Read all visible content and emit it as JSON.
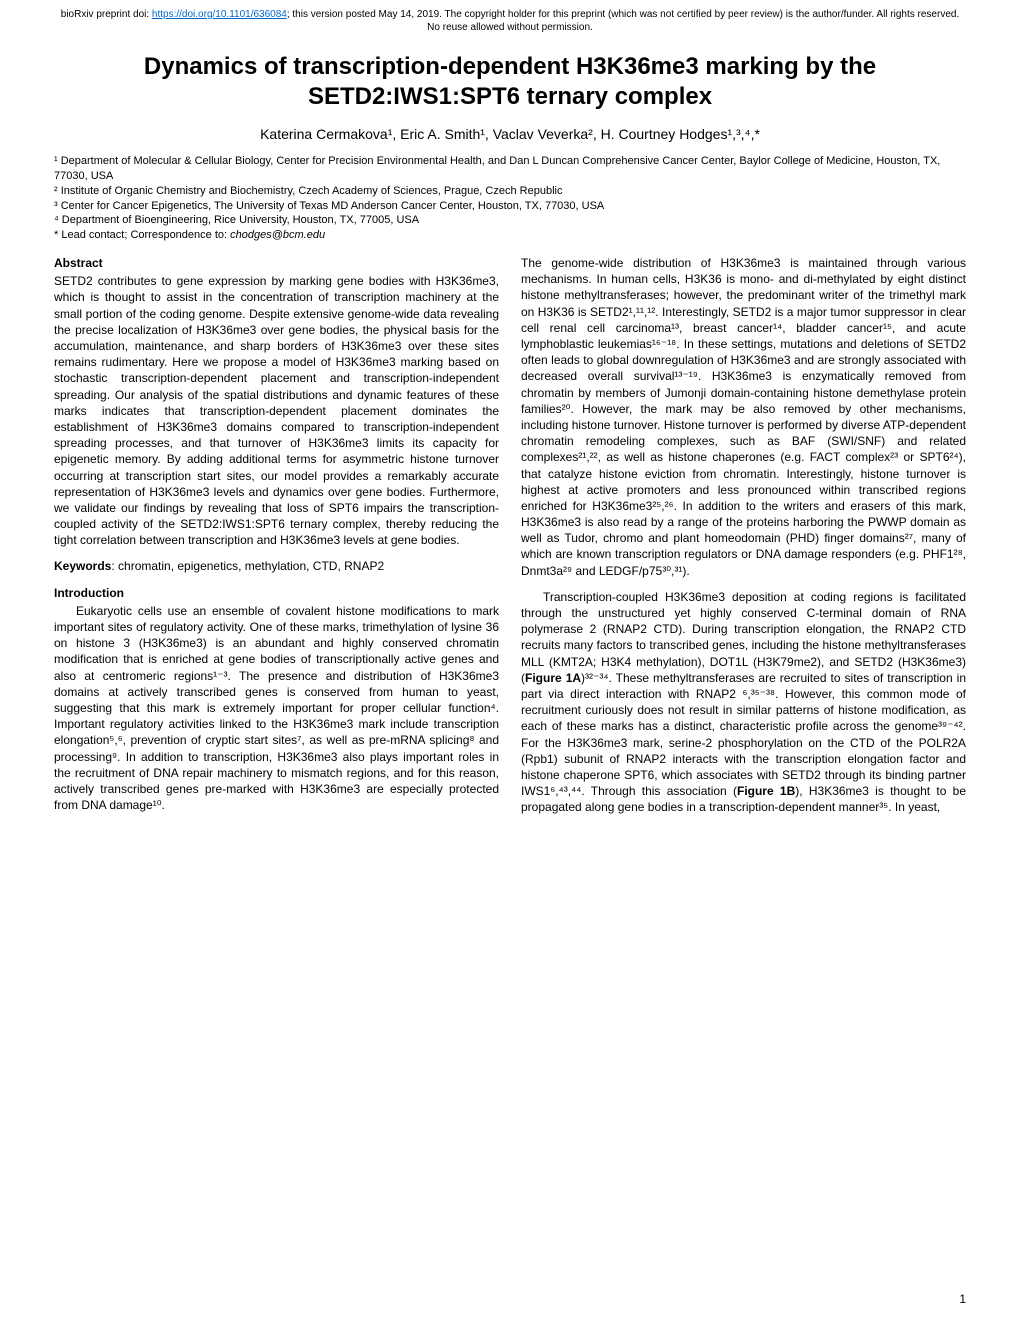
{
  "preprint": {
    "prefix": "bioRxiv preprint doi: ",
    "doi_url": "https://doi.org/10.1101/636084",
    "suffix": "; this version posted May 14, 2019. The copyright holder for this preprint (which was not certified by peer review) is the author/funder. All rights reserved. No reuse allowed without permission."
  },
  "title": "Dynamics of transcription-dependent H3K36me3 marking by the SETD2:IWS1:SPT6 ternary complex",
  "authors": "Katerina Cermakova¹, Eric A. Smith¹, Vaclav Veverka², H. Courtney Hodges¹,³,⁴,*",
  "affiliations": [
    "¹ Department of Molecular & Cellular Biology, Center for Precision Environmental Health, and Dan L Duncan Comprehensive Cancer Center, Baylor College of Medicine, Houston, TX, 77030, USA",
    "² Institute of Organic Chemistry and Biochemistry, Czech Academy of Sciences, Prague, Czech Republic",
    "³ Center for Cancer Epigenetics, The University of Texas MD Anderson Cancer Center, Houston, TX, 77030, USA",
    "⁴ Department of Bioengineering, Rice University, Houston, TX, 77005, USA"
  ],
  "correspondence_prefix": "* Lead contact; Correspondence to: ",
  "correspondence_email": "chodges@bcm.edu",
  "abstract_heading": "Abstract",
  "abstract_text": "SETD2 contributes to gene expression by marking gene bodies with H3K36me3, which is thought to assist in the concentration of transcription machinery at the small portion of the coding genome. Despite extensive genome-wide data revealing the precise localization of H3K36me3 over gene bodies, the physical basis for the accumulation, maintenance, and sharp borders of H3K36me3 over these sites remains rudimentary. Here we propose a model of H3K36me3 marking based on stochastic transcription-dependent placement and transcription-independent spreading. Our analysis of the spatial distributions and dynamic features of these marks indicates that transcription-dependent placement dominates the establishment of H3K36me3 domains compared to transcription-independent spreading processes, and that turnover of H3K36me3 limits its capacity for epigenetic memory. By adding additional terms for asymmetric histone turnover occurring at transcription start sites, our model provides a remarkably accurate representation of H3K36me3 levels and dynamics over gene bodies. Furthermore, we validate our findings by revealing that loss of SPT6 impairs the transcription-coupled activity of the SETD2:IWS1:SPT6 ternary complex, thereby reducing the tight correlation between transcription and H3K36me3 levels at gene bodies.",
  "keywords_label": "Keywords",
  "keywords_text": ": chromatin, epigenetics, methylation, CTD, RNAP2",
  "intro_heading": "Introduction",
  "intro_p1": "Eukaryotic cells use an ensemble of covalent histone modifications to mark important sites of regulatory activity. One of these marks, trimethylation of lysine 36 on histone 3 (H3K36me3) is an abundant and highly conserved chromatin modification that is enriched at gene bodies of transcriptionally active genes and also at centromeric regions¹⁻³. The presence and distribution of H3K36me3 domains at actively transcribed genes is conserved from human to yeast, suggesting that this mark is extremely important for proper cellular function⁴. Important regulatory activities linked to the H3K36me3 mark include transcription elongation⁵,⁶, prevention of cryptic start sites⁷, as well as pre-mRNA splicing⁸ and processing⁹. In addition to transcription, H3K36me3 also plays important roles in the recruitment of DNA repair machinery to mismatch regions, and for this reason, actively transcribed genes pre-marked with H3K36me3 are especially protected from DNA damage¹⁰.",
  "right_p1": "The genome-wide distribution of H3K36me3 is maintained through various mechanisms. In human cells, H3K36 is mono- and di-methylated by eight distinct histone methyltransferases; however, the predominant writer of the trimethyl mark on H3K36 is SETD2¹,¹¹,¹². Interestingly, SETD2 is a major tumor suppressor in clear cell renal cell carcinoma¹³, breast cancer¹⁴, bladder cancer¹⁵, and acute lymphoblastic leukemias¹⁶⁻¹⁸. In these settings, mutations and deletions of SETD2 often leads to global downregulation of H3K36me3 and are strongly associated with decreased overall survival¹³⁻¹⁹. H3K36me3 is enzymatically removed from chromatin by members of Jumonji domain-containing histone demethylase protein families²⁰. However, the mark may be also removed by other mechanisms, including histone turnover. Histone turnover is performed by diverse ATP-dependent chromatin remodeling complexes, such as BAF (SWI/SNF) and related complexes²¹,²², as well as histone chaperones (e.g. FACT complex²³ or SPT6²⁴), that catalyze histone eviction from chromatin. Interestingly, histone turnover is highest at active promoters and less pronounced within transcribed regions enriched for H3K36me3²⁵,²⁶. In addition to the writers and erasers of this mark, H3K36me3 is also read by a range of the proteins harboring the PWWP domain as well as Tudor, chromo and plant homeodomain (PHD) finger domains²⁷, many of which are known transcription regulators or DNA damage responders (e.g. PHF1²⁸, Dnmt3a²⁹ and LEDGF/p75³⁰,³¹).",
  "right_p2_a": "Transcription-coupled H3K36me3 deposition at coding regions is facilitated through the unstructured yet highly conserved C-terminal domain of RNA polymerase 2 (RNAP2 CTD). During transcription elongation, the RNAP2 CTD recruits many factors to transcribed genes, including the histone methyltransferases MLL (KMT2A; H3K4 methylation), DOT1L (H3K79me2), and SETD2 (H3K36me3) (",
  "figure_1a": "Figure 1A",
  "right_p2_b": ")³²⁻³⁴. These methyltransferases are recruited to sites of transcription in part via direct interaction with RNAP2 ⁶,³⁵⁻³⁸. However, this common mode of recruitment curiously does not result in similar patterns of histone modification, as each of these marks has a distinct, characteristic profile across the genome³⁹⁻⁴². For the H3K36me3 mark, serine-2 phosphorylation on the CTD of the POLR2A (Rpb1) subunit of RNAP2 interacts with the transcription elongation factor and histone chaperone SPT6, which associates with SETD2 through its binding partner IWS1⁶,⁴³,⁴⁴. Through this association (",
  "figure_1b": "Figure 1B",
  "right_p2_c": "), H3K36me3 is thought to be propagated along gene bodies in a transcription-dependent manner³⁵. In yeast,",
  "page_number": "1"
}
